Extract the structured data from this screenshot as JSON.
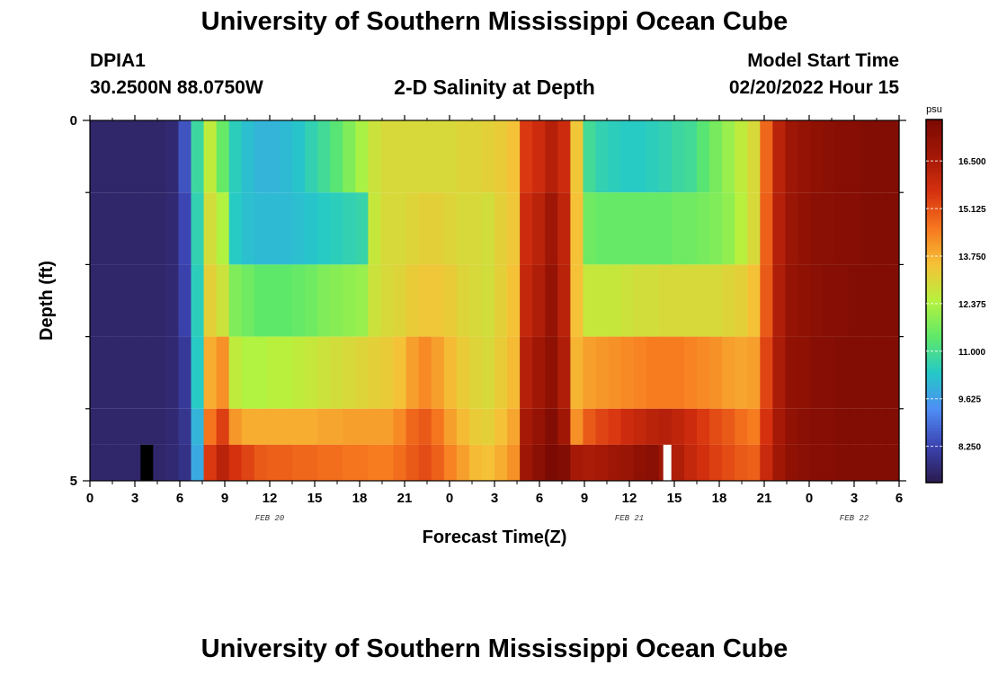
{
  "header": {
    "title": "University of Southern Mississippi Ocean Cube",
    "station_id": "DPIA1",
    "station_coords": "30.2500N  88.0750W",
    "chart_title": "2-D Salinity at Depth",
    "model_label": "Model Start Time",
    "model_time": "02/20/2022 Hour 15"
  },
  "footer": {
    "title": "University of Southern Mississippi Ocean Cube"
  },
  "chart_data": {
    "type": "heatmap",
    "title": "2-D Salinity at Depth",
    "xlabel": "Forecast Time(Z)",
    "ylabel": "Depth (ft)",
    "x_start": "2022-02-20 00:00Z",
    "x_step_hours": 1,
    "x_ticks": [
      "0",
      "3",
      "6",
      "9",
      "12",
      "15",
      "18",
      "21",
      "0",
      "3",
      "6",
      "9",
      "12",
      "15",
      "18",
      "21",
      "0",
      "3",
      "6"
    ],
    "date_labels": [
      {
        "text": "FEB 20",
        "hour": 12
      },
      {
        "text": "FEB 21",
        "hour": 36
      },
      {
        "text": "FEB 22",
        "hour": 51
      }
    ],
    "y_ticks": [
      "0",
      "5"
    ],
    "ylim": [
      0,
      5
    ],
    "colorbar": {
      "unit": "psu",
      "min": 7.2,
      "max": 17.7,
      "ticks": [
        "16.500",
        "15.125",
        "13.750",
        "12.375",
        "11.000",
        "9.625",
        "8.250"
      ],
      "colors": [
        "#2b1b4e",
        "#3b43b0",
        "#4f8cf6",
        "#25c8c9",
        "#5ee86a",
        "#b6f23e",
        "#f5c237",
        "#f7781f",
        "#d6310f",
        "#a31806",
        "#7a0a03"
      ]
    },
    "missing_color": "#000000",
    "rows": [
      {
        "depth": "0.0-1.0",
        "values": [
          7.5,
          7.5,
          7.5,
          7.5,
          7.5,
          7.5,
          7.6,
          8.5,
          10.8,
          12.6,
          11.5,
          10.5,
          10.2,
          10.0,
          10.0,
          10.1,
          10.3,
          10.6,
          10.9,
          11.3,
          11.8,
          12.3,
          12.8,
          13.0,
          13.0,
          13.0,
          13.0,
          13.0,
          13.0,
          13.1,
          13.1,
          13.2,
          13.3,
          13.5,
          15.5,
          15.8,
          16.3,
          15.8,
          13.4,
          10.9,
          10.6,
          10.5,
          10.4,
          10.4,
          10.5,
          10.6,
          10.8,
          10.9,
          11.3,
          11.7,
          12.1,
          12.6,
          13.0,
          14.8,
          16.2,
          16.8,
          17.0,
          17.2,
          17.3,
          17.4,
          17.4,
          17.5,
          17.5,
          17.5
        ]
      },
      {
        "depth": "1.0-2.0",
        "values": [
          7.5,
          7.5,
          7.5,
          7.5,
          7.5,
          7.5,
          7.6,
          8.3,
          10.6,
          12.9,
          12.4,
          10.4,
          10.2,
          10.1,
          10.1,
          10.1,
          10.2,
          10.3,
          10.4,
          10.5,
          10.6,
          10.7,
          12.7,
          13.0,
          13.0,
          13.1,
          13.2,
          13.2,
          13.1,
          13.0,
          13.0,
          12.9,
          13.2,
          13.4,
          15.8,
          16.2,
          16.8,
          16.1,
          13.5,
          11.6,
          11.5,
          11.5,
          11.5,
          11.5,
          11.5,
          11.5,
          11.6,
          11.6,
          11.7,
          11.8,
          12.0,
          12.5,
          13.0,
          14.9,
          16.3,
          16.9,
          17.1,
          17.3,
          17.3,
          17.4,
          17.4,
          17.5,
          17.5,
          17.5
        ]
      },
      {
        "depth": "2.0-3.0",
        "values": [
          7.5,
          7.5,
          7.5,
          7.5,
          7.5,
          7.5,
          7.6,
          8.2,
          10.5,
          13.2,
          12.8,
          11.8,
          11.6,
          11.4,
          11.4,
          11.4,
          11.5,
          11.6,
          11.8,
          11.9,
          12.0,
          12.1,
          12.8,
          13.0,
          13.1,
          13.3,
          13.4,
          13.4,
          13.3,
          13.1,
          13.0,
          12.9,
          13.2,
          13.5,
          16.0,
          16.4,
          17.0,
          16.2,
          13.5,
          12.7,
          12.7,
          12.7,
          12.8,
          12.9,
          12.9,
          13.0,
          13.0,
          13.0,
          13.0,
          13.0,
          13.1,
          13.2,
          13.5,
          15.0,
          16.4,
          17.0,
          17.2,
          17.3,
          17.4,
          17.4,
          17.5,
          17.5,
          17.5,
          17.5
        ]
      },
      {
        "depth": "3.0-4.0",
        "values": [
          7.5,
          7.5,
          7.5,
          7.5,
          7.5,
          7.5,
          7.6,
          8.0,
          10.4,
          13.8,
          14.2,
          12.6,
          12.4,
          12.4,
          12.5,
          12.5,
          12.6,
          12.7,
          12.8,
          12.9,
          13.0,
          13.1,
          13.2,
          13.3,
          13.5,
          14.0,
          14.3,
          14.0,
          13.6,
          13.3,
          13.1,
          13.0,
          13.3,
          13.6,
          16.3,
          16.7,
          17.2,
          16.4,
          13.7,
          14.0,
          14.1,
          14.2,
          14.3,
          14.4,
          14.5,
          14.5,
          14.5,
          14.4,
          14.3,
          14.2,
          14.0,
          13.9,
          14.0,
          15.3,
          16.5,
          17.1,
          17.2,
          17.4,
          17.4,
          17.5,
          17.5,
          17.5,
          17.5,
          17.5
        ]
      },
      {
        "depth": "4.0-4.5",
        "values": [
          7.5,
          7.5,
          7.5,
          7.5,
          7.5,
          7.5,
          7.6,
          7.9,
          10.0,
          14.6,
          15.4,
          14.1,
          13.8,
          13.8,
          13.8,
          13.8,
          13.8,
          13.8,
          13.9,
          13.9,
          14.0,
          14.0,
          14.0,
          14.0,
          14.3,
          14.8,
          15.0,
          14.6,
          14.0,
          13.6,
          13.3,
          13.2,
          13.5,
          13.9,
          16.6,
          17.0,
          17.5,
          16.7,
          14.2,
          15.0,
          15.3,
          15.5,
          15.8,
          16.0,
          16.2,
          16.3,
          16.1,
          15.8,
          15.5,
          15.2,
          15.0,
          14.7,
          14.5,
          15.6,
          16.6,
          17.1,
          17.3,
          17.4,
          17.4,
          17.5,
          17.5,
          17.5,
          17.5,
          17.5
        ]
      },
      {
        "depth": "4.5-5.0",
        "values": [
          7.5,
          7.5,
          7.5,
          7.5,
          null,
          7.5,
          7.6,
          7.8,
          9.8,
          15.5,
          16.2,
          15.6,
          15.3,
          15.0,
          14.9,
          14.9,
          14.8,
          14.8,
          14.7,
          14.7,
          14.6,
          14.6,
          14.5,
          14.5,
          14.7,
          15.0,
          15.2,
          14.9,
          14.4,
          14.0,
          13.6,
          13.5,
          13.8,
          14.2,
          16.8,
          17.3,
          17.7,
          17.5,
          16.6,
          16.5,
          16.6,
          16.8,
          16.9,
          17.2,
          17.3,
          16.8,
          16.4,
          16.0,
          15.7,
          15.4,
          15.2,
          15.0,
          14.9,
          15.9,
          16.7,
          17.2,
          17.3,
          17.4,
          17.4,
          17.5,
          17.5,
          17.5,
          17.5,
          17.5
        ]
      }
    ],
    "row_bounds_ft": [
      0,
      1,
      2,
      3,
      4,
      4.5,
      5
    ],
    "gap_columns": [
      {
        "row": 5,
        "hour": 38.5,
        "color": "#ffffff"
      }
    ]
  }
}
